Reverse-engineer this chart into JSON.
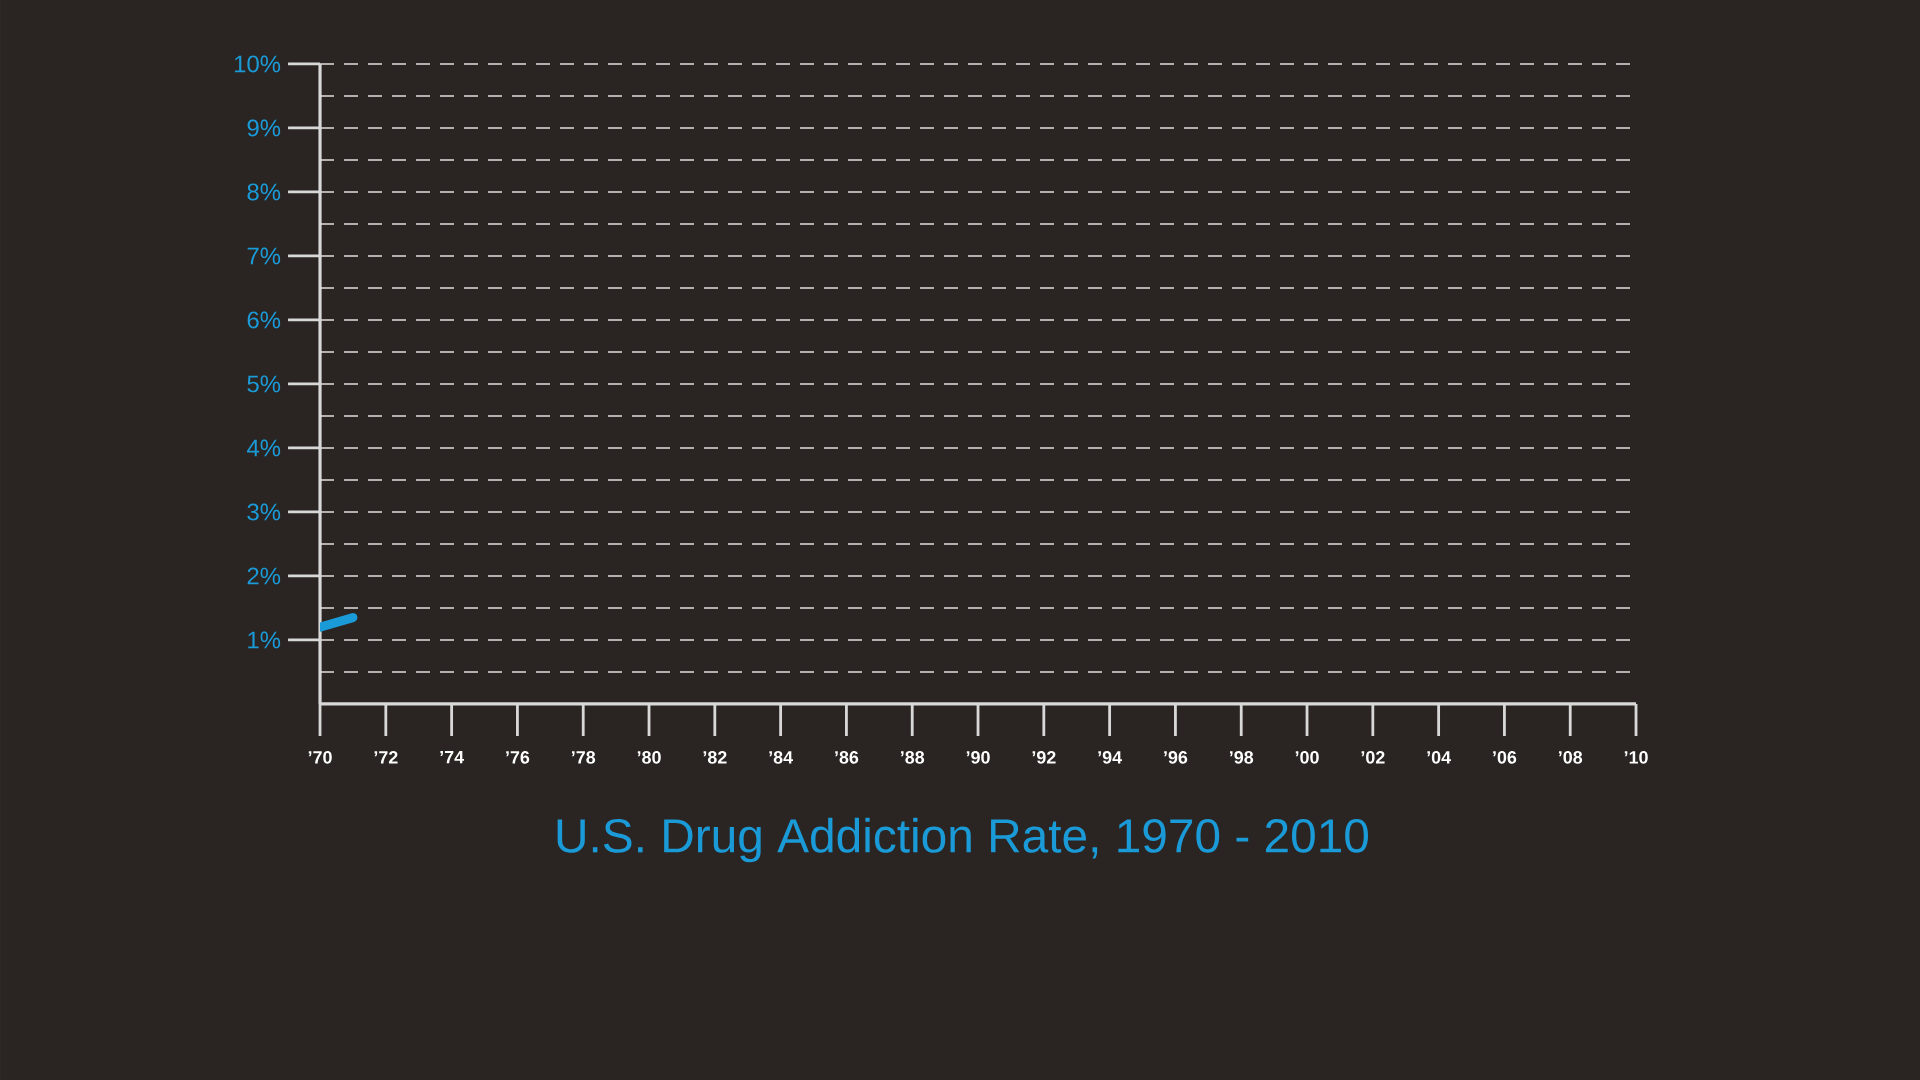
{
  "chart_data": {
    "type": "line",
    "title": "U.S. Drug Addiction Rate, 1970 - 2010",
    "x": [
      1970,
      1971
    ],
    "series": [
      {
        "color": "#1b9ad8",
        "values": [
          1.2,
          1.35
        ]
      }
    ],
    "xlim": [
      1970,
      2010
    ],
    "xticks": [
      {
        "value": 1970,
        "label": "’70"
      },
      {
        "value": 1972,
        "label": "’72"
      },
      {
        "value": 1974,
        "label": "’74"
      },
      {
        "value": 1976,
        "label": "’76"
      },
      {
        "value": 1978,
        "label": "’78"
      },
      {
        "value": 1980,
        "label": "’80"
      },
      {
        "value": 1982,
        "label": "’82"
      },
      {
        "value": 1984,
        "label": "’84"
      },
      {
        "value": 1986,
        "label": "’86"
      },
      {
        "value": 1988,
        "label": "’88"
      },
      {
        "value": 1990,
        "label": "’90"
      },
      {
        "value": 1992,
        "label": "’92"
      },
      {
        "value": 1994,
        "label": "’94"
      },
      {
        "value": 1996,
        "label": "’96"
      },
      {
        "value": 1998,
        "label": "’98"
      },
      {
        "value": 2000,
        "label": "’00"
      },
      {
        "value": 2002,
        "label": "’02"
      },
      {
        "value": 2004,
        "label": "’04"
      },
      {
        "value": 2006,
        "label": "’06"
      },
      {
        "value": 2008,
        "label": "’08"
      },
      {
        "value": 2010,
        "label": "’10"
      }
    ],
    "ylim": [
      0,
      10
    ],
    "yticks": [
      {
        "value": 0.5,
        "label": null
      },
      {
        "value": 1,
        "label": "1%"
      },
      {
        "value": 1.5,
        "label": null
      },
      {
        "value": 2,
        "label": "2%"
      },
      {
        "value": 2.5,
        "label": null
      },
      {
        "value": 3,
        "label": "3%"
      },
      {
        "value": 3.5,
        "label": null
      },
      {
        "value": 4,
        "label": "4%"
      },
      {
        "value": 4.5,
        "label": null
      },
      {
        "value": 5,
        "label": "5%"
      },
      {
        "value": 5.5,
        "label": null
      },
      {
        "value": 6,
        "label": "6%"
      },
      {
        "value": 6.5,
        "label": null
      },
      {
        "value": 7,
        "label": "7%"
      },
      {
        "value": 7.5,
        "label": null
      },
      {
        "value": 8,
        "label": "8%"
      },
      {
        "value": 8.5,
        "label": null
      },
      {
        "value": 9,
        "label": "9%"
      },
      {
        "value": 9.5,
        "label": null
      },
      {
        "value": 10,
        "label": "10%"
      }
    ],
    "grid": "y",
    "marker": "none",
    "line_style": "solid"
  }
}
